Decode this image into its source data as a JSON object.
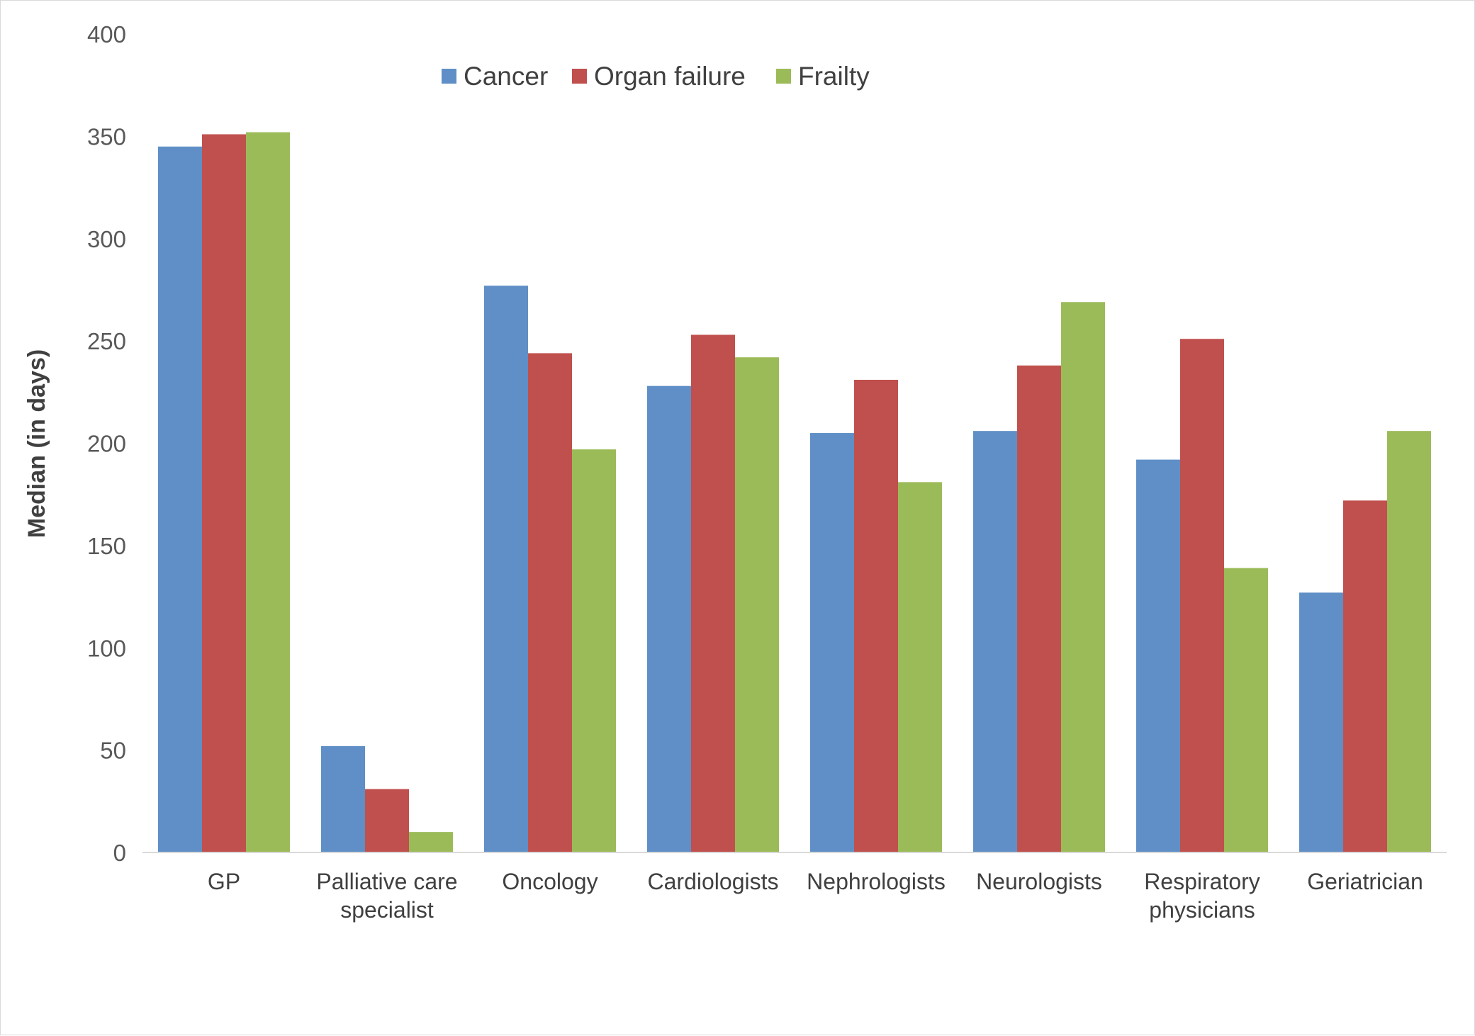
{
  "chart_data": {
    "type": "bar",
    "title": "",
    "xlabel": "",
    "ylabel": "Median (in days)",
    "ylim": [
      0,
      400
    ],
    "yticks": [
      0,
      50,
      100,
      150,
      200,
      250,
      300,
      350,
      400
    ],
    "grid": false,
    "legend_position": "top-center",
    "categories": [
      [
        "GP"
      ],
      [
        "Palliative care",
        "specialist"
      ],
      [
        "Oncology"
      ],
      [
        "Cardiologists"
      ],
      [
        "Nephrologists"
      ],
      [
        "Neurologists"
      ],
      [
        "Respiratory",
        "physicians"
      ],
      [
        "Geriatrician"
      ]
    ],
    "series": [
      {
        "name": "Cancer",
        "color": "#5f8fc6",
        "values": [
          345,
          52,
          277,
          228,
          205,
          206,
          192,
          127
        ]
      },
      {
        "name": "Organ failure",
        "color": "#c0504d",
        "values": [
          351,
          31,
          244,
          253,
          231,
          238,
          251,
          172
        ]
      },
      {
        "name": "Frailty",
        "color": "#9bbb59",
        "values": [
          352,
          10,
          197,
          242,
          181,
          269,
          139,
          206
        ]
      }
    ]
  }
}
